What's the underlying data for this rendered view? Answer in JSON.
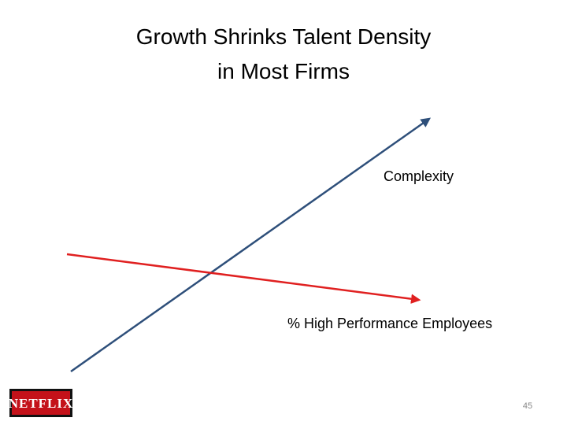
{
  "title": {
    "lines": [
      "Growth Shrinks Talent Density",
      "in Most Firms"
    ]
  },
  "labels": {
    "complexity": "Complexity",
    "high_performance": "% High Performance Employees"
  },
  "logo": {
    "text": "NETFLIX"
  },
  "page_number": "45"
}
